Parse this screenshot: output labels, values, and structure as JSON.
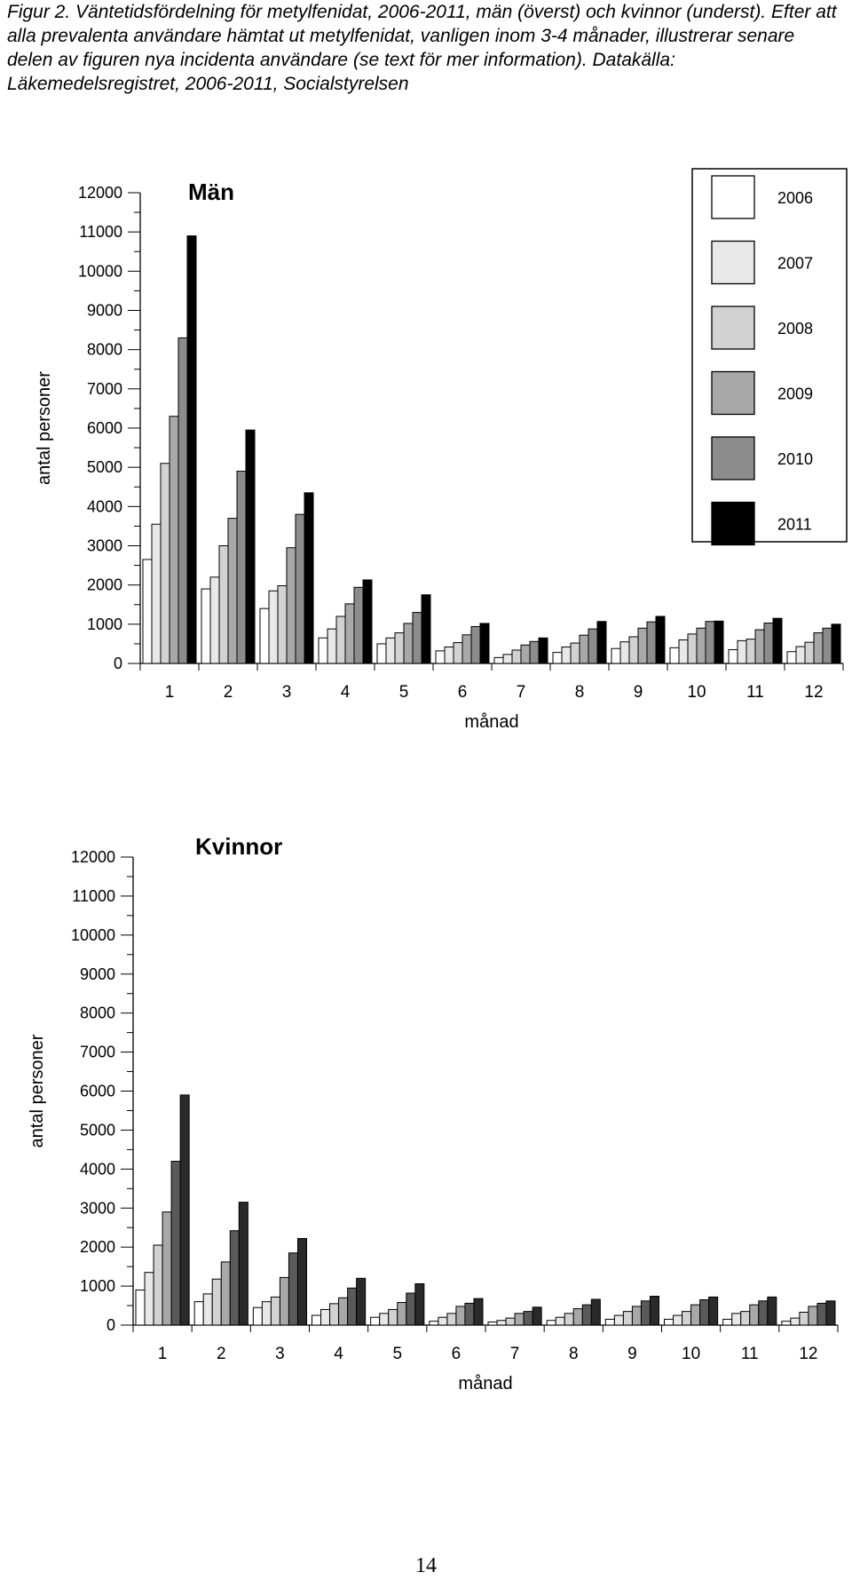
{
  "caption": "Figur 2. Väntetidsfördelning för metylfenidat, 2006-2011, män (överst) och kvinnor (underst).  Efter att alla prevalenta användare hämtat ut metylfenidat, vanligen inom 3-4 månader, illustrerar senare delen av figuren nya incidenta användare (se text för mer information). Datakälla: Läkemedelsregistret, 2006-2011, Socialstyrelsen",
  "page_number": "14",
  "chart_data": [
    {
      "type": "bar",
      "title": "Män",
      "xlabel": "månad",
      "ylabel": "antal personer",
      "categories": [
        "1",
        "2",
        "3",
        "4",
        "5",
        "6",
        "7",
        "8",
        "9",
        "10",
        "11",
        "12"
      ],
      "ylim": [
        0,
        12000
      ],
      "yticks": [
        "0",
        "1000",
        "2000",
        "3000",
        "4000",
        "5000",
        "6000",
        "7000",
        "8000",
        "9000",
        "10000",
        "11000",
        "12000"
      ],
      "legend_position": "top-right",
      "series": [
        {
          "name": "2006",
          "color": "#ffffff",
          "values": [
            2650,
            1900,
            1400,
            650,
            500,
            320,
            150,
            280,
            380,
            400,
            350,
            300
          ]
        },
        {
          "name": "2007",
          "color": "#e8e8e8",
          "values": [
            3550,
            2200,
            1850,
            880,
            650,
            420,
            230,
            420,
            550,
            600,
            580,
            430
          ]
        },
        {
          "name": "2008",
          "color": "#d2d2d2",
          "values": [
            5100,
            3000,
            1980,
            1200,
            780,
            530,
            340,
            520,
            680,
            750,
            620,
            540
          ]
        },
        {
          "name": "2009",
          "color": "#a8a8a8",
          "values": [
            6300,
            3700,
            2950,
            1520,
            1020,
            730,
            470,
            720,
            900,
            900,
            860,
            780
          ]
        },
        {
          "name": "2010",
          "color": "#8c8c8c",
          "values": [
            8300,
            4900,
            3800,
            1940,
            1300,
            940,
            560,
            880,
            1060,
            1070,
            1030,
            900
          ]
        },
        {
          "name": "2011",
          "color": "#000000",
          "values": [
            10900,
            5950,
            4350,
            2130,
            1750,
            1020,
            650,
            1070,
            1200,
            1080,
            1150,
            1000
          ]
        }
      ]
    },
    {
      "type": "bar",
      "title": "Kvinnor",
      "xlabel": "månad",
      "ylabel": "antal personer",
      "categories": [
        "1",
        "2",
        "3",
        "4",
        "5",
        "6",
        "7",
        "8",
        "9",
        "10",
        "11",
        "12"
      ],
      "ylim": [
        0,
        12000
      ],
      "yticks": [
        "0",
        "1000",
        "2000",
        "3000",
        "4000",
        "5000",
        "6000",
        "7000",
        "8000",
        "9000",
        "10000",
        "11000",
        "12000"
      ],
      "series": [
        {
          "name": "2006",
          "color": "#ffffff",
          "values": [
            900,
            600,
            450,
            250,
            200,
            100,
            80,
            120,
            150,
            150,
            150,
            100
          ]
        },
        {
          "name": "2007",
          "color": "#e8e8e8",
          "values": [
            1350,
            800,
            600,
            400,
            300,
            200,
            120,
            200,
            250,
            250,
            300,
            180
          ]
        },
        {
          "name": "2008",
          "color": "#d2d2d2",
          "values": [
            2050,
            1180,
            720,
            550,
            400,
            300,
            180,
            300,
            350,
            350,
            350,
            330
          ]
        },
        {
          "name": "2009",
          "color": "#a8a8a8",
          "values": [
            2900,
            1620,
            1220,
            700,
            580,
            480,
            300,
            420,
            480,
            520,
            520,
            480
          ]
        },
        {
          "name": "2010",
          "color": "#5a5a5a",
          "values": [
            4200,
            2420,
            1850,
            950,
            820,
            560,
            350,
            520,
            620,
            650,
            620,
            560
          ]
        },
        {
          "name": "2011",
          "color": "#2a2a2a",
          "values": [
            5900,
            3150,
            2220,
            1200,
            1060,
            680,
            460,
            660,
            740,
            720,
            720,
            620
          ]
        }
      ]
    }
  ]
}
